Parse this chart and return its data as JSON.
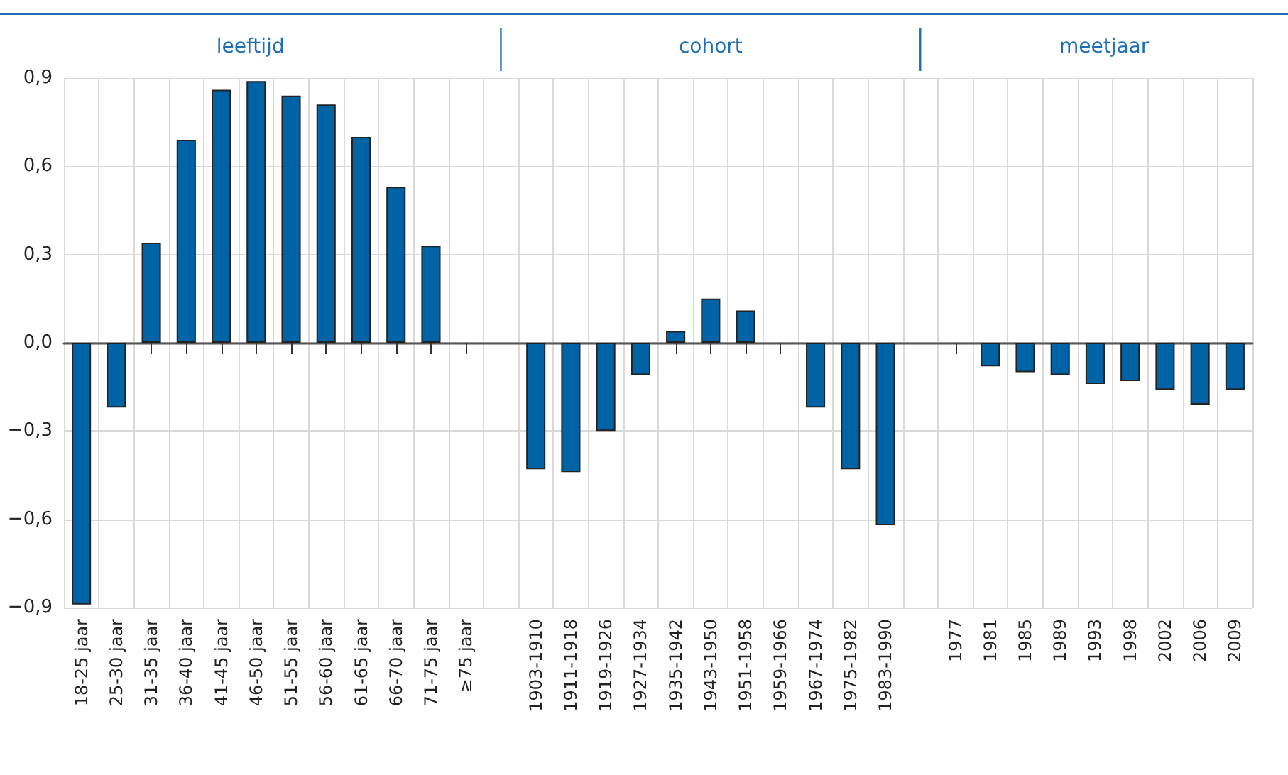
{
  "chart_data": {
    "type": "bar",
    "categories": [
      "18-25 jaar",
      "25-30 jaar",
      "31-35 jaar",
      "36-40 jaar",
      "41-45 jaar",
      "46-50 jaar",
      "51-55 jaar",
      "56-60 jaar",
      "61-65 jaar",
      "66-70 jaar",
      "71-75 jaar",
      "≥75 jaar",
      null,
      "1903-1910",
      "1911-1918",
      "1919-1926",
      "1927-1934",
      "1935-1942",
      "1943-1950",
      "1951-1958",
      "1959-1966",
      "1967-1974",
      "1975-1982",
      "1983-1990",
      null,
      "1977",
      "1981",
      "1985",
      "1989",
      "1993",
      "1998",
      "2002",
      "2006",
      "2009"
    ],
    "values": [
      -0.89,
      -0.22,
      0.34,
      0.69,
      0.86,
      0.89,
      0.84,
      0.81,
      0.7,
      0.53,
      0.33,
      0.0,
      null,
      -0.43,
      -0.44,
      -0.3,
      -0.11,
      0.04,
      0.15,
      0.11,
      0.0,
      -0.22,
      -0.43,
      -0.62,
      null,
      0.0,
      -0.08,
      -0.1,
      -0.11,
      -0.14,
      -0.13,
      -0.16,
      -0.21,
      -0.16
    ],
    "color": "#0063a6",
    "ylim": [
      -0.9,
      0.9
    ],
    "yticks": [
      {
        "value": -0.9,
        "label": "−0,9"
      },
      {
        "value": -0.6,
        "label": "−0,6"
      },
      {
        "value": -0.3,
        "label": "−0,3"
      },
      {
        "value": 0,
        "label": "0,0"
      },
      {
        "value": 0.3,
        "label": "0,3"
      },
      {
        "value": 0.6,
        "label": "0,6"
      },
      {
        "value": 0.9,
        "label": "0,9"
      }
    ],
    "grid": true,
    "annotations": [
      "leeftijd",
      "cohort",
      "meetjaar"
    ]
  }
}
